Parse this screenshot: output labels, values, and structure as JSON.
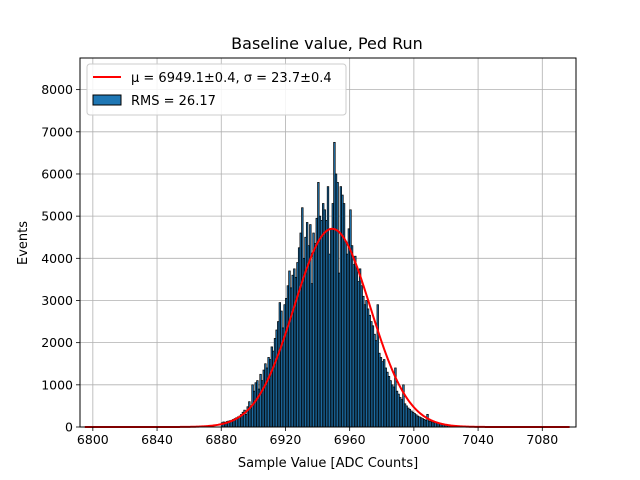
{
  "chart_data": {
    "type": "bar",
    "title": "Baseline value, Ped Run",
    "xlabel": "Sample Value [ADC Counts]",
    "ylabel": "Events",
    "xlim": [
      6792,
      7101
    ],
    "ylim": [
      0,
      8750
    ],
    "xticks": [
      6800,
      6840,
      6880,
      6920,
      6960,
      7000,
      7040,
      7080
    ],
    "yticks": [
      0,
      1000,
      2000,
      3000,
      4000,
      5000,
      6000,
      7000,
      8000
    ],
    "grid": true,
    "legend_position": "top-left",
    "bin_width": 1,
    "histogram": {
      "name": "RMS = 26.17",
      "color": "#1f77b4",
      "edgecolor": "#000000",
      "bins": [
        [
          6880,
          100
        ],
        [
          6881,
          120
        ],
        [
          6882,
          110
        ],
        [
          6883,
          130
        ],
        [
          6884,
          140
        ],
        [
          6885,
          150
        ],
        [
          6886,
          160
        ],
        [
          6887,
          180
        ],
        [
          6888,
          200
        ],
        [
          6889,
          220
        ],
        [
          6890,
          240
        ],
        [
          6891,
          260
        ],
        [
          6892,
          300
        ],
        [
          6893,
          350
        ],
        [
          6894,
          400
        ],
        [
          6895,
          300
        ],
        [
          6896,
          480
        ],
        [
          6897,
          600
        ],
        [
          6898,
          450
        ],
        [
          6899,
          1000
        ],
        [
          6900,
          850
        ],
        [
          6901,
          1050
        ],
        [
          6902,
          1100
        ],
        [
          6903,
          900
        ],
        [
          6904,
          1250
        ],
        [
          6905,
          1100
        ],
        [
          6906,
          1350
        ],
        [
          6907,
          1500
        ],
        [
          6908,
          1400
        ],
        [
          6909,
          1650
        ],
        [
          6910,
          1600
        ],
        [
          6911,
          1900
        ],
        [
          6912,
          1800
        ],
        [
          6913,
          2100
        ],
        [
          6914,
          2300
        ],
        [
          6915,
          2500
        ],
        [
          6916,
          2950
        ],
        [
          6917,
          2750
        ],
        [
          6918,
          2350
        ],
        [
          6919,
          2900
        ],
        [
          6920,
          3050
        ],
        [
          6921,
          3350
        ],
        [
          6922,
          3700
        ],
        [
          6923,
          3300
        ],
        [
          6924,
          3600
        ],
        [
          6925,
          3750
        ],
        [
          6926,
          3550
        ],
        [
          6927,
          3900
        ],
        [
          6928,
          4250
        ],
        [
          6929,
          4600
        ],
        [
          6930,
          5200
        ],
        [
          6931,
          4000
        ],
        [
          6932,
          4500
        ],
        [
          6933,
          4850
        ],
        [
          6934,
          4300
        ],
        [
          6935,
          4800
        ],
        [
          6936,
          3400
        ],
        [
          6937,
          4600
        ],
        [
          6938,
          4350
        ],
        [
          6939,
          4950
        ],
        [
          6940,
          5800
        ],
        [
          6941,
          5000
        ],
        [
          6942,
          4900
        ],
        [
          6943,
          5300
        ],
        [
          6944,
          5150
        ],
        [
          6945,
          4900
        ],
        [
          6946,
          5700
        ],
        [
          6947,
          4100
        ],
        [
          6948,
          4700
        ],
        [
          6949,
          5300
        ],
        [
          6950,
          6750
        ],
        [
          6951,
          6000
        ],
        [
          6952,
          5800
        ],
        [
          6953,
          3650
        ],
        [
          6954,
          5700
        ],
        [
          6955,
          5500
        ],
        [
          6956,
          5300
        ],
        [
          6957,
          4400
        ],
        [
          6958,
          4100
        ],
        [
          6959,
          4700
        ],
        [
          6960,
          5150
        ],
        [
          6961,
          4300
        ],
        [
          6962,
          3850
        ],
        [
          6963,
          4050
        ],
        [
          6964,
          3800
        ],
        [
          6965,
          3450
        ],
        [
          6966,
          3750
        ],
        [
          6967,
          3350
        ],
        [
          6968,
          3100
        ],
        [
          6969,
          2900
        ],
        [
          6970,
          3000
        ],
        [
          6971,
          2800
        ],
        [
          6972,
          2650
        ],
        [
          6973,
          2500
        ],
        [
          6974,
          2400
        ],
        [
          6975,
          2200
        ],
        [
          6976,
          2050
        ],
        [
          6977,
          2900
        ],
        [
          6978,
          1750
        ],
        [
          6979,
          1650
        ],
        [
          6980,
          1550
        ],
        [
          6981,
          1600
        ],
        [
          6982,
          1400
        ],
        [
          6983,
          1300
        ],
        [
          6984,
          1200
        ],
        [
          6985,
          1100
        ],
        [
          6986,
          1000
        ],
        [
          6987,
          950
        ],
        [
          6988,
          1400
        ],
        [
          6989,
          850
        ],
        [
          6990,
          780
        ],
        [
          6991,
          700
        ],
        [
          6992,
          650
        ],
        [
          6993,
          1000
        ],
        [
          6994,
          550
        ],
        [
          6995,
          500
        ],
        [
          6996,
          450
        ],
        [
          6997,
          420
        ],
        [
          6998,
          380
        ],
        [
          6999,
          350
        ],
        [
          7000,
          320
        ],
        [
          7001,
          290
        ],
        [
          7002,
          260
        ],
        [
          7003,
          240
        ],
        [
          7004,
          220
        ],
        [
          7005,
          200
        ],
        [
          7006,
          180
        ],
        [
          7007,
          160
        ],
        [
          7008,
          300
        ],
        [
          7009,
          140
        ],
        [
          7010,
          130
        ],
        [
          7011,
          120
        ],
        [
          7012,
          110
        ],
        [
          7013,
          100
        ],
        [
          7014,
          90
        ],
        [
          7015,
          80
        ],
        [
          7016,
          70
        ],
        [
          7017,
          60
        ],
        [
          7018,
          50
        ],
        [
          7019,
          45
        ],
        [
          7020,
          40
        ],
        [
          7021,
          35
        ],
        [
          7022,
          30
        ],
        [
          7023,
          25
        ],
        [
          7024,
          20
        ]
      ]
    },
    "fit": {
      "name": "$\\mu=$6949.1±0.4, $\\sigma=$23.7±0.4",
      "color": "#ff0000",
      "function": "gaussian",
      "mu": 6949.1,
      "sigma": 23.7,
      "amplitude": 4700,
      "x_range": [
        6795,
        7097
      ]
    }
  },
  "legend": {
    "fit_label": "μ = 6949.1±0.4, σ = 23.7±0.4",
    "hist_label": "RMS = 26.17"
  }
}
